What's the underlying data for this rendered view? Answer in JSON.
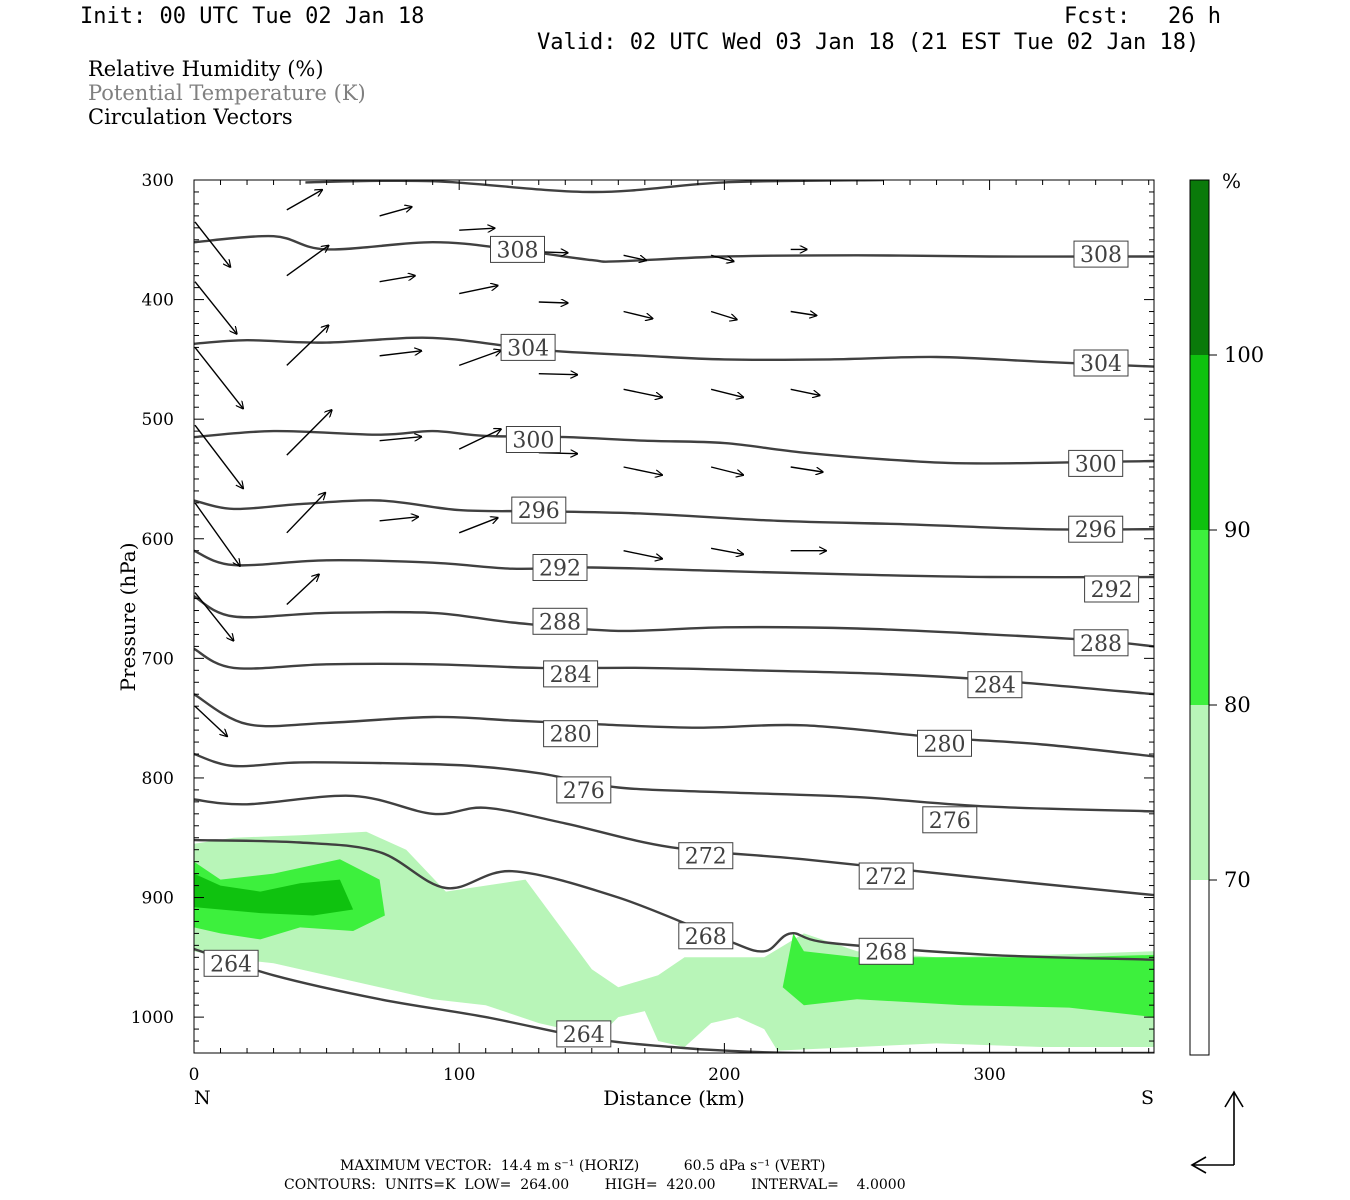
{
  "header": {
    "init": "Init: 00 UTC Tue 02 Jan 18",
    "fcst_label": "Fcst:",
    "fcst_value": "26 h",
    "valid": "Valid: 02 UTC Wed 03 Jan 18 (21 EST Tue 02 Jan 18)"
  },
  "fields": {
    "rh": "Relative Humidity (%)",
    "theta": "Potential Temperature (K)",
    "vectors": "Circulation Vectors"
  },
  "colors": {
    "rh_70_80": "#b8f5b8",
    "rh_80_90": "#3df03d",
    "rh_90_100": "#0fc20f",
    "rh_100": "#0a7a0a",
    "contour": "#404040",
    "axis": "#000000"
  },
  "footer": {
    "max_vector": "MAXIMUM VECTOR:  14.4 m s⁻¹ (HORIZ)          60.5 dPa s⁻¹ (VERT)",
    "contours": "CONTOURS:  UNITS=K  LOW=  264.00        HIGH=  420.00        INTERVAL=    4.0000"
  },
  "colorbar": {
    "unit": "%",
    "labels": [
      "100",
      "90",
      "80",
      "70"
    ]
  },
  "compass": {
    "left_end": "N",
    "right_end": "S"
  },
  "chart_data": {
    "type": "cross-section",
    "xlabel": "Distance (km)",
    "ylabel": "Pressure (hPa)",
    "xlim": [
      0,
      362
    ],
    "ylim": [
      1030,
      300
    ],
    "x_ticks": [
      0,
      100,
      200,
      300
    ],
    "y_ticks": [
      300,
      400,
      500,
      600,
      700,
      800,
      900,
      1000
    ],
    "theta_contours": [
      {
        "level": 308,
        "x": [
          0,
          30,
          50,
          90,
          120,
          150,
          160,
          200,
          250,
          300,
          362
        ],
        "p": [
          352,
          347,
          358,
          352,
          358,
          367,
          368,
          364,
          363,
          364,
          364
        ]
      },
      {
        "level": 304,
        "x": [
          0,
          20,
          50,
          90,
          130,
          170,
          200,
          240,
          280,
          320,
          362
        ],
        "p": [
          437,
          434,
          436,
          432,
          442,
          447,
          450,
          450,
          448,
          452,
          456
        ]
      },
      {
        "level": 300,
        "x": [
          0,
          30,
          70,
          90,
          110,
          140,
          170,
          200,
          230,
          270,
          300,
          362
        ],
        "p": [
          515,
          510,
          513,
          510,
          514,
          515,
          518,
          520,
          528,
          535,
          537,
          535
        ]
      },
      {
        "level": 296,
        "x": [
          0,
          15,
          40,
          70,
          100,
          130,
          170,
          220,
          270,
          320,
          362
        ],
        "p": [
          568,
          575,
          571,
          568,
          576,
          577,
          579,
          585,
          588,
          592,
          592
        ]
      },
      {
        "level": 292,
        "x": [
          0,
          15,
          50,
          90,
          120,
          150,
          200,
          250,
          300,
          362
        ],
        "p": [
          610,
          622,
          618,
          620,
          625,
          624,
          627,
          630,
          632,
          632
        ]
      },
      {
        "level": 288,
        "x": [
          0,
          15,
          50,
          90,
          120,
          160,
          200,
          250,
          300,
          340,
          362
        ],
        "p": [
          648,
          665,
          662,
          662,
          670,
          677,
          674,
          675,
          680,
          685,
          690
        ]
      },
      {
        "level": 284,
        "x": [
          0,
          15,
          50,
          90,
          130,
          170,
          210,
          260,
          300,
          362
        ],
        "p": [
          692,
          708,
          705,
          705,
          708,
          708,
          710,
          713,
          718,
          730
        ]
      },
      {
        "level": 280,
        "x": [
          0,
          20,
          50,
          90,
          120,
          150,
          190,
          230,
          280,
          320,
          362
        ],
        "p": [
          730,
          755,
          754,
          749,
          752,
          755,
          758,
          756,
          766,
          772,
          782
        ]
      },
      {
        "level": 276,
        "x": [
          0,
          15,
          40,
          80,
          105,
          130,
          160,
          200,
          250,
          300,
          362
        ],
        "p": [
          780,
          790,
          787,
          788,
          790,
          796,
          808,
          812,
          816,
          824,
          828
        ]
      },
      {
        "level": 272,
        "x": [
          0,
          20,
          60,
          90,
          110,
          140,
          180,
          230,
          290,
          362
        ],
        "p": [
          818,
          822,
          815,
          830,
          825,
          838,
          858,
          868,
          882,
          898
        ]
      },
      {
        "level": 268,
        "x": [
          0,
          40,
          70,
          95,
          120,
          160,
          200,
          215,
          225,
          240,
          300,
          362
        ],
        "p": [
          852,
          854,
          862,
          892,
          878,
          900,
          935,
          945,
          930,
          938,
          948,
          952
        ]
      },
      {
        "level": 264,
        "x": [
          0,
          30,
          70,
          110,
          150,
          180,
          200,
          230,
          300,
          362
        ],
        "p": [
          943,
          965,
          985,
          1000,
          1018,
          1025,
          1028,
          1030,
          1030,
          1030
        ]
      }
    ],
    "theta_labels": [
      {
        "level": 308,
        "text": "308",
        "x": 122,
        "p": 358
      },
      {
        "level": 308,
        "text": "308",
        "x": 342,
        "p": 362
      },
      {
        "level": 304,
        "text": "304",
        "x": 126,
        "p": 440
      },
      {
        "level": 304,
        "text": "304",
        "x": 342,
        "p": 453
      },
      {
        "level": 300,
        "text": "300",
        "x": 128,
        "p": 517
      },
      {
        "level": 300,
        "text": "300",
        "x": 340,
        "p": 537
      },
      {
        "level": 296,
        "text": "296",
        "x": 130,
        "p": 576
      },
      {
        "level": 296,
        "text": "296",
        "x": 340,
        "p": 592
      },
      {
        "level": 292,
        "text": "292",
        "x": 138,
        "p": 624
      },
      {
        "level": 292,
        "text": "292",
        "x": 346,
        "p": 642
      },
      {
        "level": 288,
        "text": "288",
        "x": 138,
        "p": 669
      },
      {
        "level": 288,
        "text": "288",
        "x": 342,
        "p": 687
      },
      {
        "level": 284,
        "text": "284",
        "x": 142,
        "p": 713
      },
      {
        "level": 284,
        "text": "284",
        "x": 302,
        "p": 722
      },
      {
        "level": 280,
        "text": "280",
        "x": 142,
        "p": 763
      },
      {
        "level": 280,
        "text": "280",
        "x": 283,
        "p": 771
      },
      {
        "level": 276,
        "text": "276",
        "x": 147,
        "p": 810
      },
      {
        "level": 276,
        "text": "276",
        "x": 285,
        "p": 835
      },
      {
        "level": 272,
        "text": "272",
        "x": 193,
        "p": 865
      },
      {
        "level": 272,
        "text": "272",
        "x": 261,
        "p": 882
      },
      {
        "level": 268,
        "text": "268",
        "x": 193,
        "p": 932
      },
      {
        "level": 268,
        "text": "268",
        "x": 261,
        "p": 945
      },
      {
        "level": 264,
        "text": "264",
        "x": 14,
        "p": 955
      },
      {
        "level": 264,
        "text": "264",
        "x": 147,
        "p": 1014
      }
    ],
    "rh_regions": [
      {
        "range": "70-80",
        "x": [
          0,
          15,
          40,
          65,
          80,
          95,
          110,
          125,
          135,
          145,
          150,
          160,
          175,
          185,
          200,
          215,
          230,
          250,
          280,
          320,
          362,
          362,
          320,
          280,
          250,
          220,
          215,
          205,
          195,
          185,
          175,
          170,
          160,
          150,
          140,
          130,
          110,
          90,
          70,
          50,
          30,
          10,
          0
        ],
        "p": [
          855,
          850,
          848,
          845,
          860,
          895,
          890,
          885,
          915,
          945,
          960,
          975,
          965,
          950,
          950,
          950,
          930,
          945,
          950,
          948,
          945,
          1025,
          1025,
          1022,
          1025,
          1028,
          1010,
          1000,
          1005,
          1025,
          1020,
          995,
          1000,
          1022,
          1010,
          1005,
          990,
          985,
          975,
          965,
          955,
          950,
          945
        ]
      },
      {
        "range": "80-90",
        "x": [
          0,
          10,
          30,
          55,
          70,
          72,
          60,
          40,
          25,
          10,
          0
        ],
        "p": [
          870,
          885,
          880,
          868,
          885,
          915,
          928,
          925,
          935,
          930,
          925
        ]
      },
      {
        "range": "80-90",
        "x": [
          222,
          226,
          230,
          250,
          290,
          330,
          362,
          362,
          330,
          290,
          250,
          230,
          222
        ],
        "p": [
          975,
          930,
          945,
          950,
          950,
          950,
          948,
          1000,
          992,
          990,
          985,
          990,
          975
        ]
      },
      {
        "range": "90-100",
        "x": [
          0,
          10,
          25,
          40,
          55,
          60,
          45,
          25,
          10,
          0
        ],
        "p": [
          880,
          890,
          895,
          888,
          885,
          910,
          915,
          913,
          910,
          908
        ]
      }
    ],
    "vectors": [
      {
        "x": 0,
        "p": 335,
        "u": 11,
        "w": 45
      },
      {
        "x": 0,
        "p": 385,
        "u": 13,
        "w": 52
      },
      {
        "x": 0,
        "p": 440,
        "u": 15,
        "w": 61
      },
      {
        "x": 0,
        "p": 505,
        "u": 15,
        "w": 63
      },
      {
        "x": 0,
        "p": 570,
        "u": 14,
        "w": 63
      },
      {
        "x": 0,
        "p": 645,
        "u": 12,
        "w": 48
      },
      {
        "x": 0,
        "p": 740,
        "u": 10,
        "w": 30
      },
      {
        "x": 35,
        "p": 325,
        "u": 11,
        "w": -20
      },
      {
        "x": 35,
        "p": 380,
        "u": 13,
        "w": -30
      },
      {
        "x": 35,
        "p": 455,
        "u": 13,
        "w": -40
      },
      {
        "x": 35,
        "p": 530,
        "u": 14,
        "w": -45
      },
      {
        "x": 35,
        "p": 595,
        "u": 12,
        "w": -40
      },
      {
        "x": 35,
        "p": 655,
        "u": 10,
        "w": -30
      },
      {
        "x": 70,
        "p": 330,
        "u": 10,
        "w": -9
      },
      {
        "x": 70,
        "p": 385,
        "u": 11,
        "w": -6
      },
      {
        "x": 70,
        "p": 447,
        "u": 13,
        "w": -5
      },
      {
        "x": 70,
        "p": 518,
        "u": 13,
        "w": -4
      },
      {
        "x": 70,
        "p": 585,
        "u": 12,
        "w": -4
      },
      {
        "x": 100,
        "p": 342,
        "u": 11,
        "w": -2
      },
      {
        "x": 100,
        "p": 395,
        "u": 12,
        "w": -8
      },
      {
        "x": 100,
        "p": 455,
        "u": 13,
        "w": -15
      },
      {
        "x": 100,
        "p": 525,
        "u": 13,
        "w": -20
      },
      {
        "x": 100,
        "p": 595,
        "u": 12,
        "w": -15
      },
      {
        "x": 130,
        "p": 360,
        "u": 9,
        "w": 1
      },
      {
        "x": 130,
        "p": 402,
        "u": 9,
        "w": 1
      },
      {
        "x": 130,
        "p": 462,
        "u": 12,
        "w": 1
      },
      {
        "x": 130,
        "p": 528,
        "u": 12,
        "w": 1
      },
      {
        "x": 162,
        "p": 363,
        "u": 7,
        "w": 5
      },
      {
        "x": 162,
        "p": 410,
        "u": 9,
        "w": 7
      },
      {
        "x": 162,
        "p": 475,
        "u": 12,
        "w": 8
      },
      {
        "x": 162,
        "p": 540,
        "u": 12,
        "w": 8
      },
      {
        "x": 162,
        "p": 610,
        "u": 12,
        "w": 8
      },
      {
        "x": 195,
        "p": 363,
        "u": 7,
        "w": 6
      },
      {
        "x": 195,
        "p": 410,
        "u": 8,
        "w": 8
      },
      {
        "x": 195,
        "p": 475,
        "u": 10,
        "w": 8
      },
      {
        "x": 195,
        "p": 540,
        "u": 10,
        "w": 8
      },
      {
        "x": 195,
        "p": 608,
        "u": 10,
        "w": 6
      },
      {
        "x": 225,
        "p": 358,
        "u": 5,
        "w": 0
      },
      {
        "x": 225,
        "p": 410,
        "u": 8,
        "w": 4
      },
      {
        "x": 225,
        "p": 475,
        "u": 9,
        "w": 6
      },
      {
        "x": 225,
        "p": 540,
        "u": 10,
        "w": 5
      },
      {
        "x": 225,
        "p": 610,
        "u": 11,
        "w": 0
      }
    ]
  }
}
